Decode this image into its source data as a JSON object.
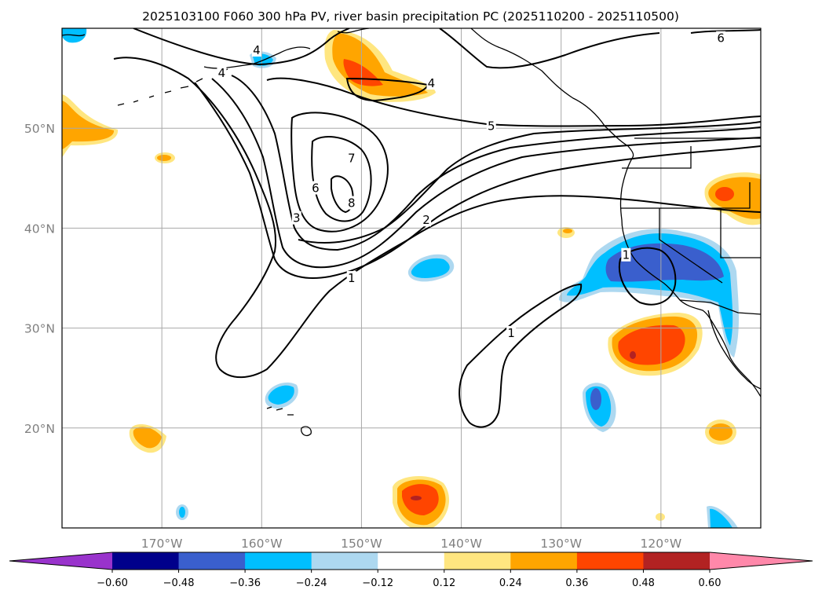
{
  "chart_data": {
    "type": "map-contour",
    "title": "2025103100 F060 300 hPa PV, river basin precipitation PC (2025110200 - 2025110500)",
    "lon_range": [
      -180,
      -110
    ],
    "lat_range": [
      10,
      60
    ],
    "x_ticks": [
      {
        "lon": -170,
        "label": "170°W"
      },
      {
        "lon": -160,
        "label": "160°W"
      },
      {
        "lon": -150,
        "label": "150°W"
      },
      {
        "lon": -140,
        "label": "140°W"
      },
      {
        "lon": -130,
        "label": "130°W"
      },
      {
        "lon": -120,
        "label": "120°W"
      }
    ],
    "y_ticks": [
      {
        "lat": 20,
        "label": "20°N"
      },
      {
        "lat": 30,
        "label": "30°N"
      },
      {
        "lat": 40,
        "label": "40°N"
      },
      {
        "lat": 50,
        "label": "50°N"
      }
    ],
    "pv_contour_labels": [
      {
        "text": "1",
        "lon": -151,
        "lat": 35
      },
      {
        "text": "1",
        "lon": -135,
        "lat": 29.5
      },
      {
        "text": "1",
        "lon": -123.5,
        "lat": 37.3
      },
      {
        "text": "2",
        "lon": -143.5,
        "lat": 40.8
      },
      {
        "text": "3",
        "lon": -156.5,
        "lat": 41
      },
      {
        "text": "4",
        "lon": -164,
        "lat": 55.5
      },
      {
        "text": "4",
        "lon": -160.5,
        "lat": 57.8
      },
      {
        "text": "4",
        "lon": -143,
        "lat": 54.5
      },
      {
        "text": "5",
        "lon": -137,
        "lat": 50.2
      },
      {
        "text": "6",
        "lon": -154.6,
        "lat": 44
      },
      {
        "text": "6",
        "lon": -114,
        "lat": 59
      },
      {
        "text": "7",
        "lon": -151,
        "lat": 47
      },
      {
        "text": "8",
        "lon": -151,
        "lat": 42.5
      }
    ],
    "colorbar": {
      "levels": [
        -0.6,
        -0.48,
        -0.36,
        -0.24,
        -0.12,
        0.12,
        0.24,
        0.36,
        0.48,
        0.6
      ],
      "tick_labels": [
        "−0.60",
        "−0.48",
        "−0.36",
        "−0.24",
        "−0.12",
        "0.12",
        "0.24",
        "0.36",
        "0.48",
        "0.60"
      ],
      "colors": [
        "#9933cc",
        "#00008b",
        "#3a5fcd",
        "#00bfff",
        "#add8f0",
        "#ffffff",
        "#ffe680",
        "#ffa500",
        "#ff4500",
        "#b22222",
        "#ff88aa"
      ],
      "extend": "both"
    }
  }
}
